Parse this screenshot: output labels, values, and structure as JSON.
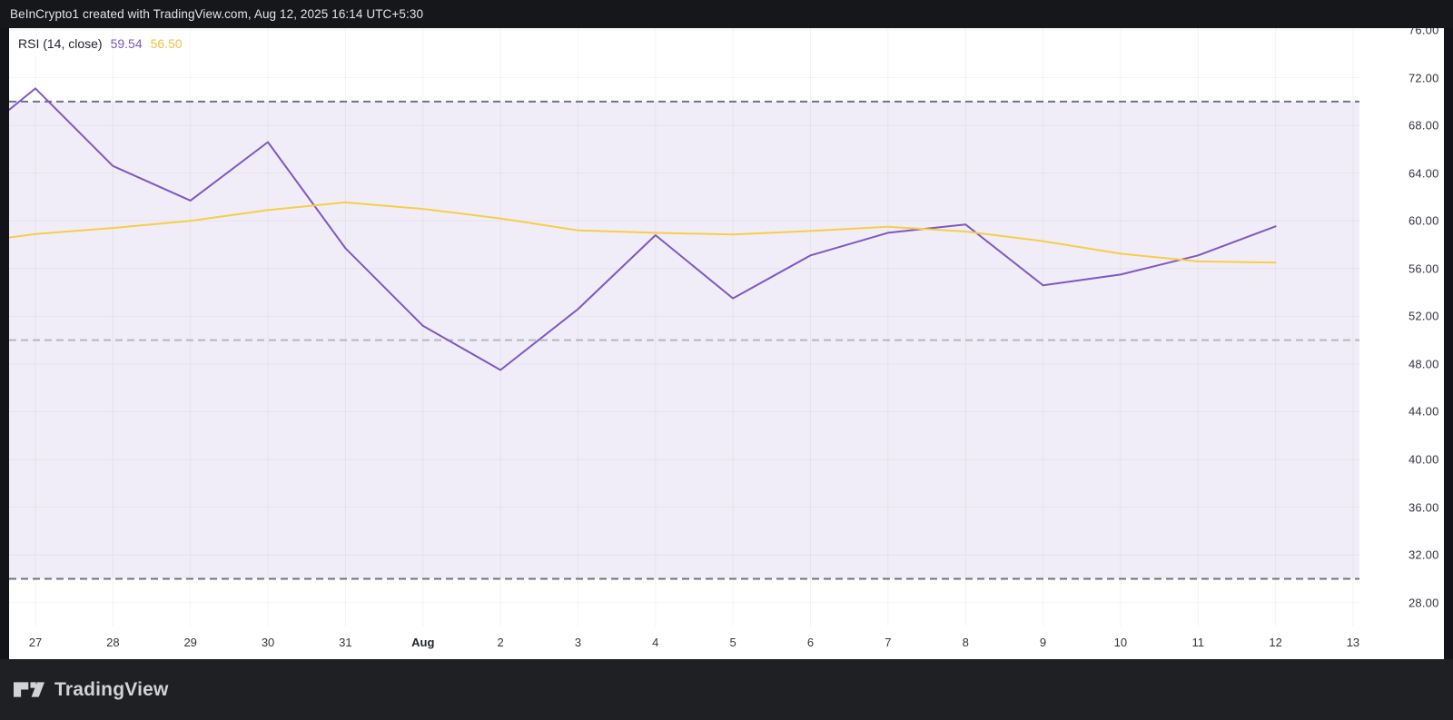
{
  "header": {
    "title": "BeInCrypto1 created with TradingView.com, Aug 12, 2025 16:14 UTC+5:30"
  },
  "legend": {
    "label": "RSI (14, close)",
    "rsi_value": "59.54",
    "ma_value": "56.50"
  },
  "footer": {
    "brand": "TradingView",
    "logo_icon": "tradingview-logo"
  },
  "colors": {
    "rsi_line": "#7E57C2",
    "ma_line": "#F6CE47",
    "rsi_value_text": "#7E57C2",
    "ma_value_text": "#EFC243",
    "band_fill": "rgba(126,87,194,0.11)",
    "limit_line_outer": "#6f747e",
    "limit_line_mid": "#b4b7bd",
    "grid_line": "rgba(42,46,57,0.055)",
    "header_bg": "#16171a",
    "footer_bg": "#1e2024",
    "chart_bg": "#ffffff"
  },
  "chart_data": {
    "type": "line",
    "title": "RSI (14, close)",
    "x_categories": [
      "27",
      "28",
      "29",
      "30",
      "31",
      "Aug",
      "2",
      "3",
      "4",
      "5",
      "6",
      "7",
      "8",
      "9",
      "10",
      "11",
      "12",
      "13"
    ],
    "bold_x_label": "Aug",
    "y_ticks": [
      "76.00",
      "72.00",
      "68.00",
      "64.00",
      "60.00",
      "56.00",
      "52.00",
      "48.00",
      "44.00",
      "40.00",
      "36.00",
      "32.00",
      "28.00"
    ],
    "ylim": [
      26.0,
      76.15
    ],
    "grid": true,
    "legend_position": "top-left",
    "limit_levels": [
      70,
      50,
      30
    ],
    "band_range": [
      30,
      70
    ],
    "series": [
      {
        "name": "RSI",
        "color": "#7E57C2",
        "edge_start_value": 69.3,
        "values_by_day": [
          71.1,
          64.6,
          61.7,
          66.6,
          57.7,
          51.2,
          47.5,
          52.6,
          58.8,
          53.5,
          57.1,
          59.0,
          59.7,
          54.6,
          55.5,
          57.1,
          59.54
        ],
        "last_value": 59.54
      },
      {
        "name": "RSI-based MA",
        "color": "#F6CE47",
        "edge_start_value": 58.6,
        "values_by_day": [
          58.9,
          59.4,
          60.0,
          60.9,
          61.55,
          61.0,
          60.2,
          59.2,
          59.0,
          58.85,
          59.15,
          59.5,
          59.1,
          58.3,
          57.25,
          56.6,
          56.5
        ],
        "last_value": 56.5
      }
    ]
  }
}
